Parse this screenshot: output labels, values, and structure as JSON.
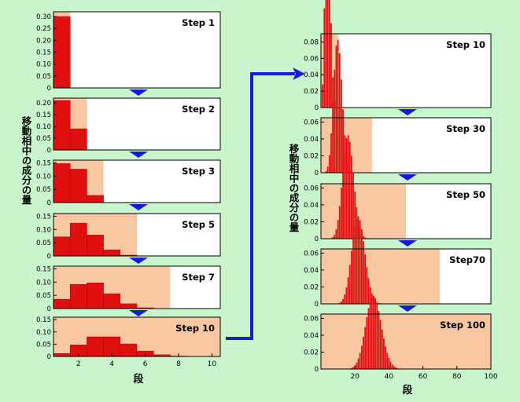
{
  "colors": {
    "background": "#c8f5cc",
    "panel": "#ffffff",
    "stationary": "#ffffff",
    "mobile": "#f9c7a1",
    "bar": "#e01010",
    "arrow": "#1a1ad6"
  },
  "left_ylabel": "移動相中の成分の量",
  "right_ylabel": "移動相中の成分の量",
  "left_xlabel": "段",
  "right_xlabel": "段",
  "chart_data": [
    {
      "type": "bar",
      "title": "Step 1",
      "xlim": [
        0.5,
        10.5
      ],
      "ylim": [
        0,
        0.32
      ],
      "yticks": [
        "0",
        "0.05",
        "0.10",
        "0.15",
        "0.20",
        "0.25",
        "0.30"
      ],
      "ytick_values": [
        0,
        0.05,
        0.1,
        0.15,
        0.2,
        0.25,
        0.3
      ],
      "mobile_phase_end": 1.5,
      "x": [
        1
      ],
      "values": [
        0.3
      ]
    },
    {
      "type": "bar",
      "title": "Step 2",
      "xlim": [
        0.5,
        10.5
      ],
      "ylim": [
        0,
        0.22
      ],
      "yticks": [
        "0",
        "0.05",
        "0.10",
        "0.15",
        "0.20"
      ],
      "ytick_values": [
        0,
        0.05,
        0.1,
        0.15,
        0.2
      ],
      "mobile_phase_end": 2.5,
      "x": [
        1,
        2
      ],
      "values": [
        0.21,
        0.09
      ]
    },
    {
      "type": "bar",
      "title": "Step 3",
      "xlim": [
        0.5,
        10.5
      ],
      "ylim": [
        0,
        0.16
      ],
      "yticks": [
        "0",
        "0.05",
        "0.10",
        "0.15"
      ],
      "ytick_values": [
        0,
        0.05,
        0.1,
        0.15
      ],
      "mobile_phase_end": 3.5,
      "x": [
        1,
        2,
        3
      ],
      "values": [
        0.147,
        0.126,
        0.027
      ]
    },
    {
      "type": "bar",
      "title": "Step 5",
      "xlim": [
        0.5,
        10.5
      ],
      "ylim": [
        0,
        0.16
      ],
      "yticks": [
        "0",
        "0.05",
        "0.10",
        "0.15"
      ],
      "ytick_values": [
        0,
        0.05,
        0.1,
        0.15
      ],
      "mobile_phase_end": 5.5,
      "x": [
        1,
        2,
        3,
        4,
        5
      ],
      "values": [
        0.072,
        0.124,
        0.079,
        0.023,
        0.003
      ]
    },
    {
      "type": "bar",
      "title": "Step 7",
      "xlim": [
        0.5,
        10.5
      ],
      "ylim": [
        0,
        0.16
      ],
      "yticks": [
        "0",
        "0.05",
        "0.10",
        "0.15"
      ],
      "ytick_values": [
        0,
        0.05,
        0.1,
        0.15
      ],
      "mobile_phase_end": 7.5,
      "x": [
        1,
        2,
        3,
        4,
        5,
        6,
        7
      ],
      "values": [
        0.035,
        0.091,
        0.097,
        0.056,
        0.018,
        0.003,
        0.0003
      ]
    },
    {
      "type": "bar",
      "title": "Step 10",
      "xlim": [
        0.5,
        10.5
      ],
      "ylim": [
        0,
        0.16
      ],
      "yticks": [
        "0",
        "0.05",
        "0.10",
        "0.15"
      ],
      "ytick_values": [
        0,
        0.05,
        0.1,
        0.15
      ],
      "xticks": [
        "2",
        "4",
        "6",
        "8",
        "10"
      ],
      "xtick_values": [
        2,
        4,
        6,
        8,
        10
      ],
      "mobile_phase_end": 10.5,
      "x": [
        1,
        2,
        3,
        4,
        5,
        6,
        7,
        8,
        9,
        10
      ],
      "values": [
        0.012,
        0.047,
        0.08,
        0.08,
        0.051,
        0.022,
        0.007,
        0.0015,
        0.0002,
        1e-05
      ]
    },
    {
      "type": "bar",
      "title": "Step 10",
      "xlim": [
        0,
        100
      ],
      "ylim": [
        0,
        0.09
      ],
      "yticks": [
        "0",
        "0.02",
        "0.04",
        "0.06",
        "0.08"
      ],
      "ytick_values": [
        0,
        0.02,
        0.04,
        0.06,
        0.08
      ],
      "mobile_phase_end": 10,
      "distribution": {
        "type": "binomial",
        "n": 10,
        "p": 0.3
      }
    },
    {
      "type": "bar",
      "title": "Step 30",
      "xlim": [
        0,
        100
      ],
      "ylim": [
        0,
        0.065
      ],
      "yticks": [
        "0",
        "0.02",
        "0.04",
        "0.06"
      ],
      "ytick_values": [
        0,
        0.02,
        0.04,
        0.06
      ],
      "mobile_phase_end": 30,
      "distribution": {
        "type": "binomial",
        "n": 30,
        "p": 0.3
      }
    },
    {
      "type": "bar",
      "title": "Step 50",
      "xlim": [
        0,
        100
      ],
      "ylim": [
        0,
        0.065
      ],
      "yticks": [
        "0",
        "0.02",
        "0.04",
        "0.06"
      ],
      "ytick_values": [
        0,
        0.02,
        0.04,
        0.06
      ],
      "mobile_phase_end": 50,
      "distribution": {
        "type": "binomial",
        "n": 50,
        "p": 0.3
      }
    },
    {
      "type": "bar",
      "title": "Step70",
      "xlim": [
        0,
        100
      ],
      "ylim": [
        0,
        0.065
      ],
      "yticks": [
        "0",
        "0.02",
        "0.04",
        "0.06"
      ],
      "ytick_values": [
        0,
        0.02,
        0.04,
        0.06
      ],
      "mobile_phase_end": 70,
      "distribution": {
        "type": "binomial",
        "n": 70,
        "p": 0.3
      }
    },
    {
      "type": "bar",
      "title": "Step 100",
      "xlim": [
        0,
        100
      ],
      "ylim": [
        0,
        0.065
      ],
      "yticks": [
        "0",
        "0.02",
        "0.04",
        "0.06"
      ],
      "ytick_values": [
        0,
        0.02,
        0.04,
        0.06
      ],
      "xticks": [
        "20",
        "40",
        "60",
        "80",
        "100"
      ],
      "xtick_values": [
        20,
        40,
        60,
        80,
        100
      ],
      "mobile_phase_end": 100,
      "distribution": {
        "type": "binomial",
        "n": 100,
        "p": 0.3
      }
    }
  ]
}
